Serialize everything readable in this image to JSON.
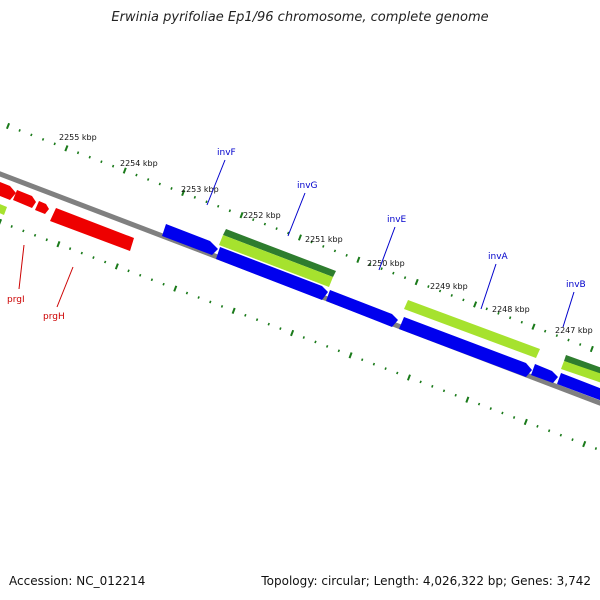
{
  "title": "Erwinia pyrifoliae Ep1/96 chromosome, complete genome",
  "accession": "Accession: NC_012214",
  "summary": "Topology: circular; Length: 4,026,322 bp; Genes: 3,742",
  "colors": {
    "backbone": "#808080",
    "ticks": "#1a7a1a",
    "forward_gene": "#0000ee",
    "reverse_gene_dark": "#2e8b2e",
    "reverse_gene_light": "#a6e22e",
    "prg_gene": "#ee0000",
    "inv_label": "#0000cc",
    "prg_label": "#cc0000"
  },
  "kbp_ticks": [
    "2255 kbp",
    "2254 kbp",
    "2253 kbp",
    "2252 kbp",
    "2251 kbp",
    "2250 kbp",
    "2249 kbp",
    "2248 kbp",
    "2247 kbp"
  ],
  "gene_labels": {
    "inv": [
      "invF",
      "invG",
      "invE",
      "invA",
      "invB"
    ],
    "prg": [
      "prgI",
      "prgH"
    ]
  }
}
